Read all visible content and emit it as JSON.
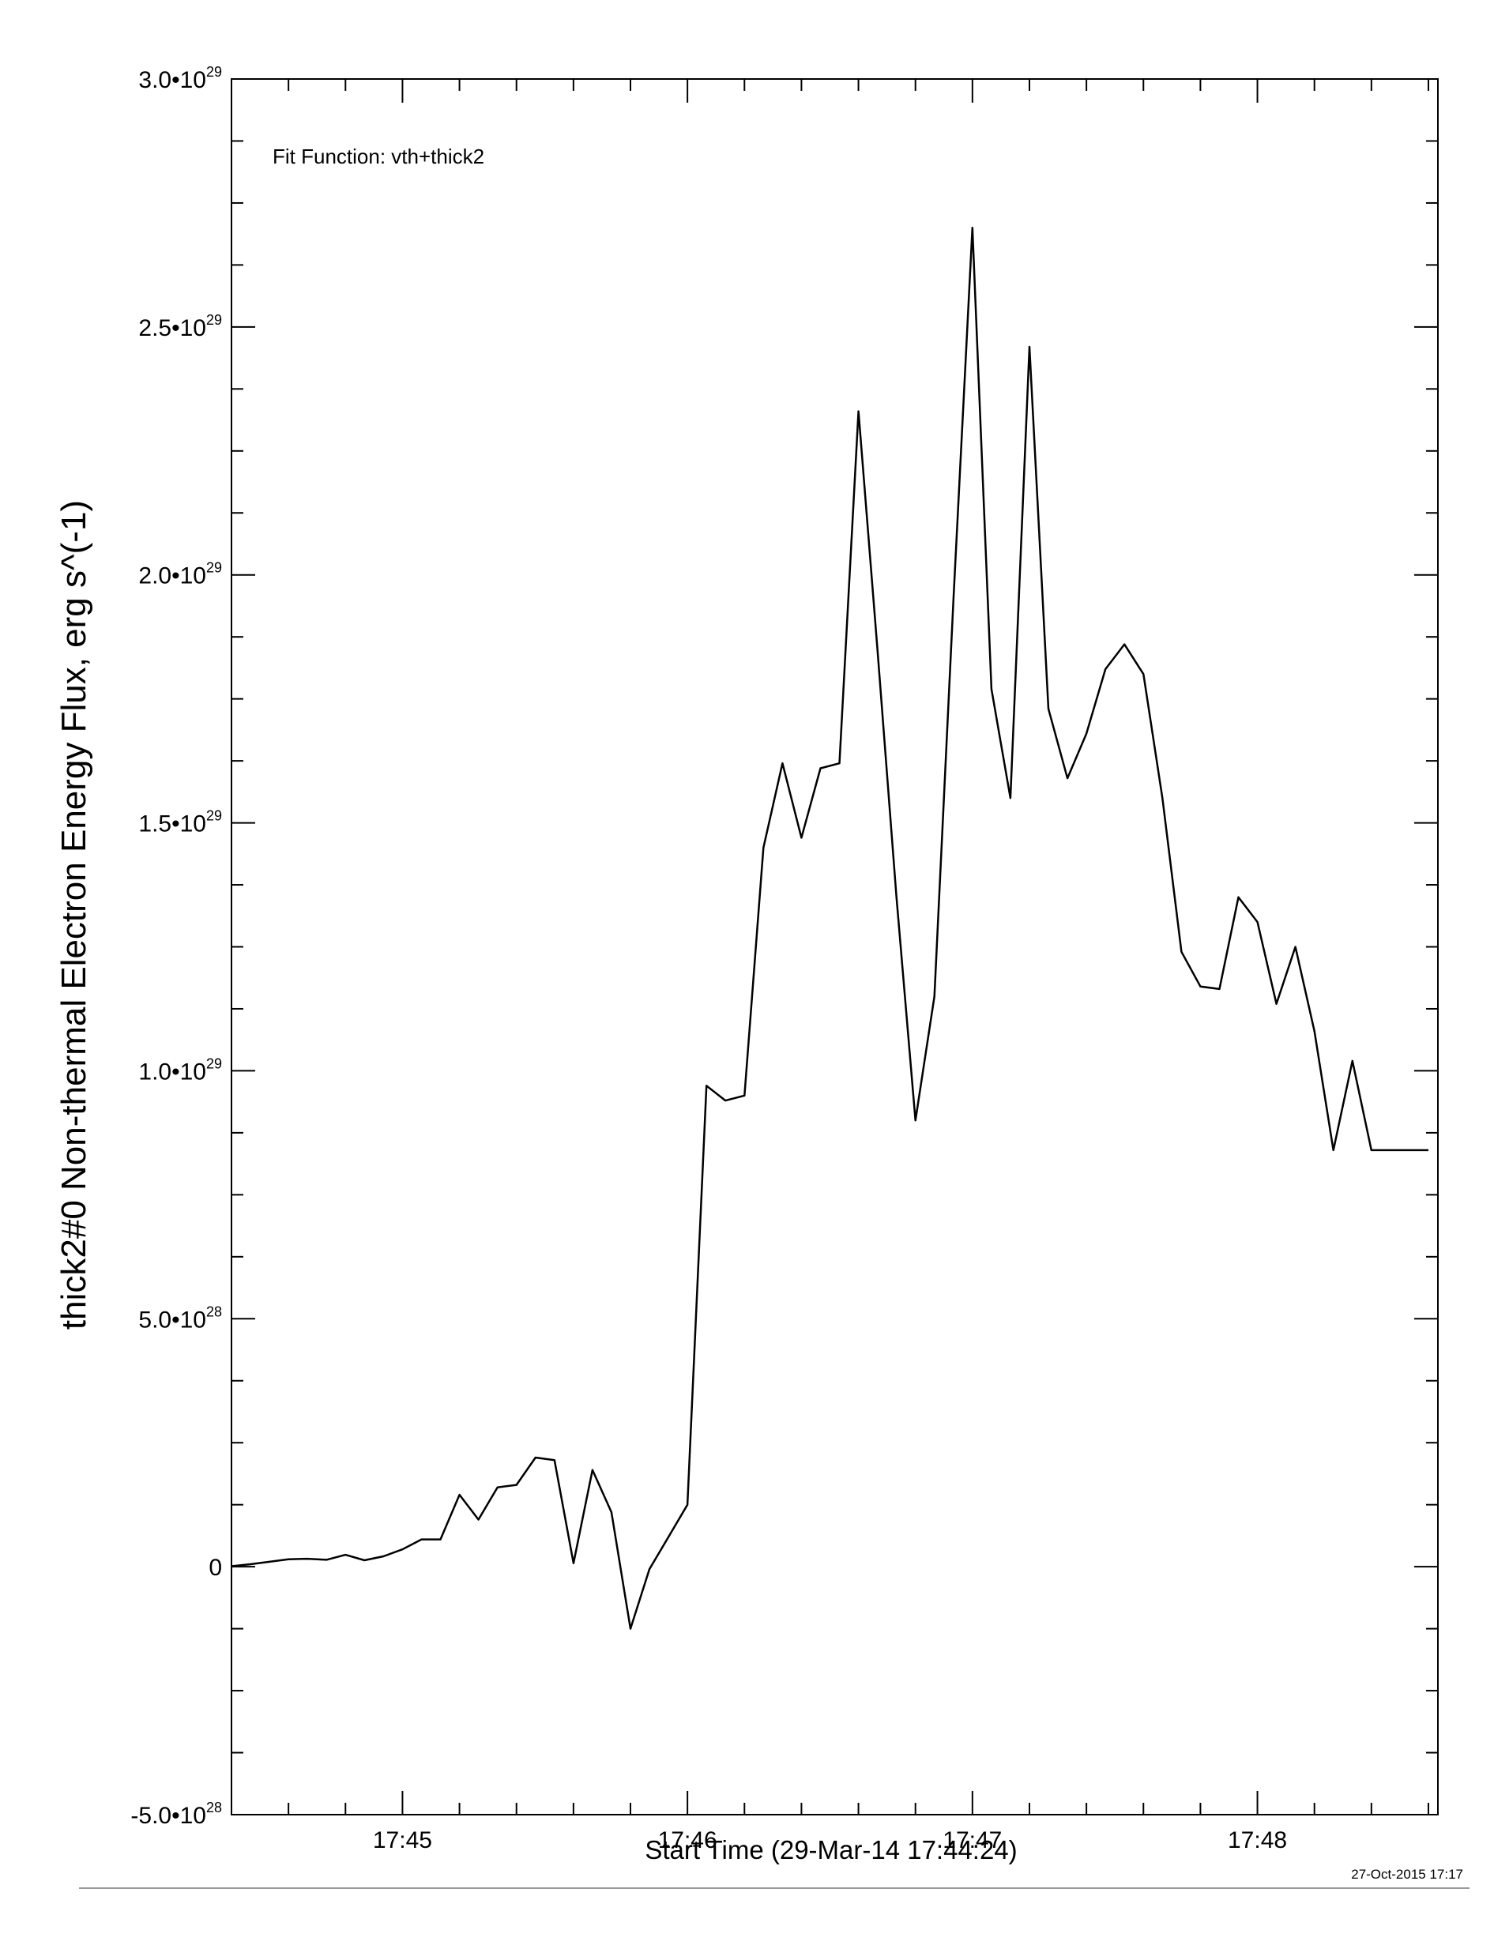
{
  "chart_data": {
    "type": "line",
    "annotation": "Fit Function: vth+thick2",
    "xlabel": "Start Time (29-Mar-14 17:44:24)",
    "ylabel": "thick2#0 Non-thermal Electron Energy Flux, erg s^(-1)",
    "timestamp": "27-Oct-2015 17:17",
    "grid": false,
    "legend": "none",
    "x_unit": "seconds after 17:44:24",
    "xlim": [
      0,
      254
    ],
    "ylim": [
      -5e+28,
      3e+29
    ],
    "x_ticks": [
      {
        "label": "17:45",
        "value": 36
      },
      {
        "label": "17:46",
        "value": 96
      },
      {
        "label": "17:47",
        "value": 156
      },
      {
        "label": "17:48",
        "value": 216
      }
    ],
    "y_ticks": [
      {
        "mantissa": "-5.0•10",
        "exp": "28",
        "value": -5e+28
      },
      {
        "mantissa": "0",
        "exp": "",
        "value": 0
      },
      {
        "mantissa": "5.0•10",
        "exp": "28",
        "value": 5e+28
      },
      {
        "mantissa": "1.0•10",
        "exp": "29",
        "value": 1e+29
      },
      {
        "mantissa": "1.5•10",
        "exp": "29",
        "value": 1.5e+29
      },
      {
        "mantissa": "2.0•10",
        "exp": "29",
        "value": 2e+29
      },
      {
        "mantissa": "2.5•10",
        "exp": "29",
        "value": 2.5e+29
      },
      {
        "mantissa": "3.0•10",
        "exp": "29",
        "value": 3e+29
      }
    ],
    "series": [
      {
        "x": [
          0,
          4,
          8,
          12,
          16,
          20,
          24,
          28,
          32,
          36,
          40,
          44,
          48,
          52,
          56,
          60,
          64,
          68,
          72,
          76,
          80,
          84,
          88,
          92,
          96,
          100,
          104,
          108,
          112,
          116,
          120,
          124,
          128,
          132,
          136,
          140,
          144,
          148,
          152,
          156,
          160,
          164,
          168,
          172,
          176,
          180,
          184,
          188,
          192,
          196,
          200,
          204,
          208,
          212,
          216,
          220,
          224,
          228,
          232,
          236,
          240,
          244,
          248,
          252
        ],
        "y": [
          1e+26,
          5e+26,
          1e+27,
          1.5e+27,
          1.6e+27,
          1.4e+27,
          2.4e+27,
          1.3e+27,
          2.1e+27,
          3.5e+27,
          5.5e+27,
          5.5e+27,
          1.45e+28,
          9.5e+27,
          1.6e+28,
          1.65e+28,
          2.2e+28,
          2.15e+28,
          7e+26,
          1.95e+28,
          1.1e+28,
          -1.25e+28,
          -5e+26,
          6e+27,
          1.25e+28,
          9.7e+28,
          9.4e+28,
          9.5e+28,
          1.45e+29,
          1.62e+29,
          1.47e+29,
          1.61e+29,
          1.62e+29,
          2.33e+29,
          1.85e+29,
          1.35e+29,
          9e+28,
          1.15e+29,
          1.95e+29,
          2.7e+29,
          1.77e+29,
          1.55e+29,
          2.46e+29,
          1.73e+29,
          1.59e+29,
          1.68e+29,
          1.81e+29,
          1.86e+29,
          1.8e+29,
          1.55e+29,
          1.24e+29,
          1.17e+29,
          1.165e+29,
          1.35e+29,
          1.3e+29,
          1.135e+29,
          1.25e+29,
          1.08e+29,
          8.4e+28,
          1.02e+29,
          8.4e+28,
          8.4e+28,
          8.4e+28,
          8.4e+28
        ]
      }
    ]
  }
}
